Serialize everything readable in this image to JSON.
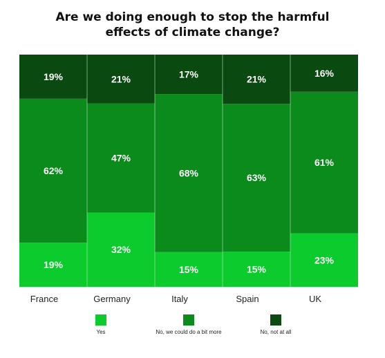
{
  "chart_data": {
    "type": "bar",
    "stacked": true,
    "normalized_percent": true,
    "title_lines": [
      "Are we doing enough to stop the harmful",
      "effects of climate change?"
    ],
    "categories": [
      "France",
      "Germany",
      "Italy",
      "Spain",
      "UK"
    ],
    "series": [
      {
        "name": "Yes",
        "values": [
          19,
          32,
          15,
          15,
          23
        ],
        "labels": [
          "19%",
          "32%",
          "15%",
          "15%",
          "23%"
        ],
        "color": "#0bcc2c"
      },
      {
        "name": "No, we could do a bit more",
        "values": [
          62,
          47,
          68,
          63,
          61
        ],
        "labels": [
          "62%",
          "47%",
          "68%",
          "63%",
          "61%"
        ],
        "color": "#0b8b1b"
      },
      {
        "name": "No, not at all",
        "values": [
          19,
          21,
          17,
          21,
          16
        ],
        "labels": [
          "19%",
          "21%",
          "17%",
          "21%",
          "16%"
        ],
        "color": "#0a4a10"
      }
    ],
    "legend_position": "bottom",
    "grid": false
  }
}
